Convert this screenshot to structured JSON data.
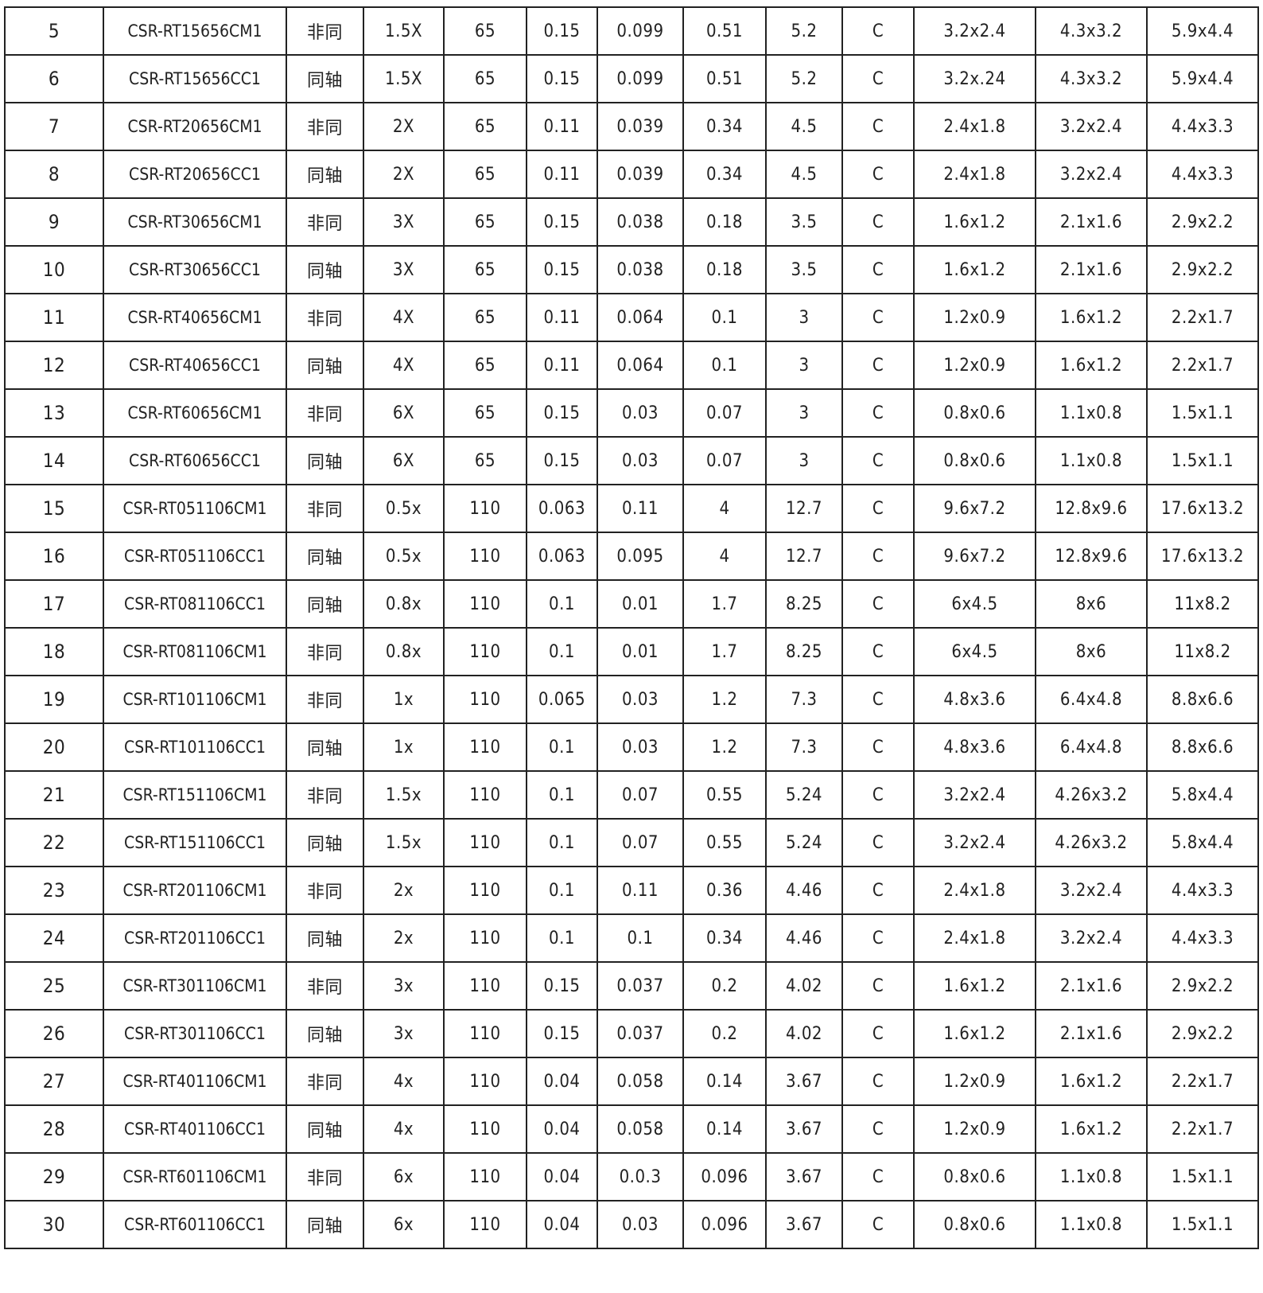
{
  "table": {
    "rows": [
      [
        "5",
        "CSR-RT15656CM1",
        "非同",
        "1.5X",
        "65",
        "0.15",
        "0.099",
        "0.51",
        "5.2",
        "C",
        "3.2x2.4",
        "4.3x3.2",
        "5.9x4.4"
      ],
      [
        "6",
        "CSR-RT15656CC1",
        "同轴",
        "1.5X",
        "65",
        "0.15",
        "0.099",
        "0.51",
        "5.2",
        "C",
        "3.2x.24",
        "4.3x3.2",
        "5.9x4.4"
      ],
      [
        "7",
        "CSR-RT20656CM1",
        "非同",
        "2X",
        "65",
        "0.11",
        "0.039",
        "0.34",
        "4.5",
        "C",
        "2.4x1.8",
        "3.2x2.4",
        "4.4x3.3"
      ],
      [
        "8",
        "CSR-RT20656CC1",
        "同轴",
        "2X",
        "65",
        "0.11",
        "0.039",
        "0.34",
        "4.5",
        "C",
        "2.4x1.8",
        "3.2x2.4",
        "4.4x3.3"
      ],
      [
        "9",
        "CSR-RT30656CM1",
        "非同",
        "3X",
        "65",
        "0.15",
        "0.038",
        "0.18",
        "3.5",
        "C",
        "1.6x1.2",
        "2.1x1.6",
        "2.9x2.2"
      ],
      [
        "10",
        "CSR-RT30656CC1",
        "同轴",
        "3X",
        "65",
        "0.15",
        "0.038",
        "0.18",
        "3.5",
        "C",
        "1.6x1.2",
        "2.1x1.6",
        "2.9x2.2"
      ],
      [
        "11",
        "CSR-RT40656CM1",
        "非同",
        "4X",
        "65",
        "0.11",
        "0.064",
        "0.1",
        "3",
        "C",
        "1.2x0.9",
        "1.6x1.2",
        "2.2x1.7"
      ],
      [
        "12",
        "CSR-RT40656CC1",
        "同轴",
        "4X",
        "65",
        "0.11",
        "0.064",
        "0.1",
        "3",
        "C",
        "1.2x0.9",
        "1.6x1.2",
        "2.2x1.7"
      ],
      [
        "13",
        "CSR-RT60656CM1",
        "非同",
        "6X",
        "65",
        "0.15",
        "0.03",
        "0.07",
        "3",
        "C",
        "0.8x0.6",
        "1.1x0.8",
        "1.5x1.1"
      ],
      [
        "14",
        "CSR-RT60656CC1",
        "同轴",
        "6X",
        "65",
        "0.15",
        "0.03",
        "0.07",
        "3",
        "C",
        "0.8x0.6",
        "1.1x0.8",
        "1.5x1.1"
      ],
      [
        "15",
        "CSR-RT051106CM1",
        "非同",
        "0.5x",
        "110",
        "0.063",
        "0.11",
        "4",
        "12.7",
        "C",
        "9.6x7.2",
        "12.8x9.6",
        "17.6x13.2"
      ],
      [
        "16",
        "CSR-RT051106CC1",
        "同轴",
        "0.5x",
        "110",
        "0.063",
        "0.095",
        "4",
        "12.7",
        "C",
        "9.6x7.2",
        "12.8x9.6",
        "17.6x13.2"
      ],
      [
        "17",
        "CSR-RT081106CC1",
        "同轴",
        "0.8x",
        "110",
        "0.1",
        "0.01",
        "1.7",
        "8.25",
        "C",
        "6x4.5",
        "8x6",
        "11x8.2"
      ],
      [
        "18",
        "CSR-RT081106CM1",
        "非同",
        "0.8x",
        "110",
        "0.1",
        "0.01",
        "1.7",
        "8.25",
        "C",
        "6x4.5",
        "8x6",
        "11x8.2"
      ],
      [
        "19",
        "CSR-RT101106CM1",
        "非同",
        "1x",
        "110",
        "0.065",
        "0.03",
        "1.2",
        "7.3",
        "C",
        "4.8x3.6",
        "6.4x4.8",
        "8.8x6.6"
      ],
      [
        "20",
        "CSR-RT101106CC1",
        "同轴",
        "1x",
        "110",
        "0.1",
        "0.03",
        "1.2",
        "7.3",
        "C",
        "4.8x3.6",
        "6.4x4.8",
        "8.8x6.6"
      ],
      [
        "21",
        "CSR-RT151106CM1",
        "非同",
        "1.5x",
        "110",
        "0.1",
        "0.07",
        "0.55",
        "5.24",
        "C",
        "3.2x2.4",
        "4.26x3.2",
        "5.8x4.4"
      ],
      [
        "22",
        "CSR-RT151106CC1",
        "同轴",
        "1.5x",
        "110",
        "0.1",
        "0.07",
        "0.55",
        "5.24",
        "C",
        "3.2x2.4",
        "4.26x3.2",
        "5.8x4.4"
      ],
      [
        "23",
        "CSR-RT201106CM1",
        "非同",
        "2x",
        "110",
        "0.1",
        "0.11",
        "0.36",
        "4.46",
        "C",
        "2.4x1.8",
        "3.2x2.4",
        "4.4x3.3"
      ],
      [
        "24",
        "CSR-RT201106CC1",
        "同轴",
        "2x",
        "110",
        "0.1",
        "0.1",
        "0.34",
        "4.46",
        "C",
        "2.4x1.8",
        "3.2x2.4",
        "4.4x3.3"
      ],
      [
        "25",
        "CSR-RT301106CM1",
        "非同",
        "3x",
        "110",
        "0.15",
        "0.037",
        "0.2",
        "4.02",
        "C",
        "1.6x1.2",
        "2.1x1.6",
        "2.9x2.2"
      ],
      [
        "26",
        "CSR-RT301106CC1",
        "同轴",
        "3x",
        "110",
        "0.15",
        "0.037",
        "0.2",
        "4.02",
        "C",
        "1.6x1.2",
        "2.1x1.6",
        "2.9x2.2"
      ],
      [
        "27",
        "CSR-RT401106CM1",
        "非同",
        "4x",
        "110",
        "0.04",
        "0.058",
        "0.14",
        "3.67",
        "C",
        "1.2x0.9",
        "1.6x1.2",
        "2.2x1.7"
      ],
      [
        "28",
        "CSR-RT401106CC1",
        "同轴",
        "4x",
        "110",
        "0.04",
        "0.058",
        "0.14",
        "3.67",
        "C",
        "1.2x0.9",
        "1.6x1.2",
        "2.2x1.7"
      ],
      [
        "29",
        "CSR-RT601106CM1",
        "非同",
        "6x",
        "110",
        "0.04",
        "0.0.3",
        "0.096",
        "3.67",
        "C",
        "0.8x0.6",
        "1.1x0.8",
        "1.5x1.1"
      ],
      [
        "30",
        "CSR-RT601106CC1",
        "同轴",
        "6x",
        "110",
        "0.04",
        "0.03",
        "0.096",
        "3.67",
        "C",
        "0.8x0.6",
        "1.1x0.8",
        "1.5x1.1"
      ]
    ]
  }
}
